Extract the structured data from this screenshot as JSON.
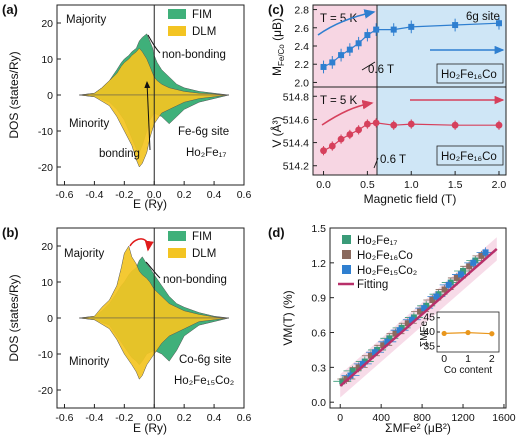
{
  "colors": {
    "fim": "#3fb07a",
    "dlm": "#f3c422",
    "pink_bg": "#f7d6e3",
    "blue_bg": "#cfe6f6",
    "blue_pts": "#2f7fd0",
    "red_pts": "#d6405c",
    "fit_line": "#b8306a",
    "s17": "#3a9b78",
    "s16": "#8a6a5e",
    "s15": "#2f7fd0",
    "inset": "#e9971d"
  },
  "panels": {
    "a": {
      "label": "(a)",
      "ylabel": "DOS (states/Ry)",
      "xlabel": "E (Ry)",
      "majority": "Majority",
      "minority": "Minority",
      "non_bonding": "non-bonding",
      "bonding": "bonding",
      "site": "Fe-6g site",
      "compound": "Ho₂Fe₁₇",
      "legend": [
        "FIM",
        "DLM"
      ],
      "yticks": [
        "20",
        "10",
        "0",
        "-10",
        "-20"
      ],
      "xticks": [
        "-0.6",
        "-0.4",
        "-0.2",
        "0.0",
        "0.2",
        "0.4",
        "0.6"
      ]
    },
    "b": {
      "label": "(b)",
      "ylabel": "DOS (states/Ry)",
      "xlabel": "E (Ry)",
      "majority": "Majority",
      "minority": "Minority",
      "non_bonding": "non-bonding",
      "site": "Co-6g site",
      "compound": "Ho₂Fe₁₅Co₂",
      "legend": [
        "FIM",
        "DLM"
      ],
      "yticks": [
        "20",
        "10",
        "0",
        "-10",
        "-20"
      ],
      "xticks": [
        "-0.6",
        "-0.4",
        "-0.2",
        "0.0",
        "0.2",
        "0.4",
        "0.6"
      ]
    },
    "c": {
      "label": "(c)",
      "top_ylabel": "M",
      "top_ylabel_sub": "Fe/Co",
      "top_ylabel_unit": "(μB)",
      "bot_ylabel": "V (Å³)",
      "xlabel": "Magnetic field (T)",
      "temp_top": "T = 5 K",
      "temp_bot": "T = 5 K",
      "site": "6g site",
      "field_top": "0.6 T",
      "field_bot": "0.6 T",
      "compound_top": "Ho₂Fe₁₆Co",
      "compound_bot": "Ho₂Fe₁₆Co",
      "top_yticks": [
        "2.8",
        "2.6",
        "2.4",
        "2.2",
        "2.0"
      ],
      "bot_yticks": [
        "514.8",
        "514.6",
        "514.4",
        "514.2"
      ],
      "xticks": [
        "0.0",
        "0.5",
        "1.0",
        "1.5",
        "2.0"
      ]
    },
    "d": {
      "label": "(d)",
      "ylabel": "VM(T) (%)",
      "xlabel": "ΣMFe² (μB²)",
      "legend": [
        "Ho₂Fe₁₇",
        "Ho₂Fe₁₆Co",
        "Ho₂Fe₁₅Co₂",
        "Fitting"
      ],
      "yticks": [
        "1.5",
        "1.2",
        "0.9",
        "0.6",
        "0.3",
        "0.0"
      ],
      "xticks": [
        "0",
        "400",
        "800",
        "1200",
        "1600"
      ],
      "inset_ylabel": "ΣMFe",
      "inset_xlabel": "Co content",
      "inset_yticks": [
        "45",
        "40",
        "35"
      ],
      "inset_xticks": [
        "0",
        "1",
        "2"
      ]
    }
  },
  "chart_data": [
    {
      "type": "area",
      "panel": "a",
      "xlabel": "E (Ry)",
      "ylabel": "DOS (states/Ry)",
      "xlim": [
        -0.65,
        0.6
      ],
      "ylim": [
        -25,
        25
      ],
      "series": [
        {
          "name": "FIM",
          "majority": {
            "x": [
              -0.5,
              -0.4,
              -0.35,
              -0.3,
              -0.25,
              -0.22,
              -0.2,
              -0.17,
              -0.15,
              -0.12,
              -0.1,
              -0.08,
              -0.05,
              -0.03,
              -0.01,
              0.0,
              0.02,
              0.05,
              0.1,
              0.15,
              0.2,
              0.3,
              0.4,
              0.5
            ],
            "y": [
              0,
              0.5,
              2,
              4,
              7,
              9,
              10,
              11,
              12,
              13,
              15,
              16,
              17,
              15,
              13,
              11,
              9,
              7,
              5,
              3,
              2,
              1,
              0.5,
              0
            ]
          },
          "minority": {
            "x": [
              -0.5,
              -0.4,
              -0.3,
              -0.25,
              -0.2,
              -0.15,
              -0.12,
              -0.1,
              -0.08,
              -0.05,
              -0.03,
              0.0,
              0.05,
              0.1,
              0.15,
              0.2,
              0.3,
              0.4,
              0.5
            ],
            "y": [
              0,
              -0.5,
              -2,
              -4,
              -7,
              -12,
              -15,
              -16,
              -14,
              -10,
              -7,
              -5,
              -6,
              -8,
              -6,
              -4,
              -2,
              -1,
              0
            ]
          }
        },
        {
          "name": "DLM",
          "majority": {
            "x": [
              -0.5,
              -0.4,
              -0.35,
              -0.3,
              -0.25,
              -0.22,
              -0.2,
              -0.17,
              -0.15,
              -0.12,
              -0.1,
              -0.08,
              -0.05,
              -0.03,
              -0.01,
              0.0,
              0.02,
              0.05,
              0.1,
              0.15,
              0.2,
              0.3,
              0.4,
              0.5
            ],
            "y": [
              0,
              0.5,
              2,
              4,
              6,
              8,
              9,
              10,
              11,
              12,
              13,
              12,
              10,
              8,
              6,
              5,
              4,
              3,
              2,
              1.5,
              1,
              0.5,
              0.3,
              0
            ]
          },
          "minority": {
            "x": [
              -0.5,
              -0.4,
              -0.3,
              -0.25,
              -0.2,
              -0.15,
              -0.12,
              -0.1,
              -0.08,
              -0.05,
              -0.03,
              0.0,
              0.05,
              0.1,
              0.15,
              0.2,
              0.3,
              0.4,
              0.5
            ],
            "y": [
              0,
              -0.5,
              -3,
              -6,
              -10,
              -14,
              -18,
              -20,
              -19,
              -16,
              -12,
              -8,
              -5,
              -4,
              -3,
              -2,
              -1,
              -0.5,
              0
            ]
          }
        }
      ]
    },
    {
      "type": "area",
      "panel": "b",
      "xlabel": "E (Ry)",
      "ylabel": "DOS (states/Ry)",
      "xlim": [
        -0.65,
        0.6
      ],
      "ylim": [
        -25,
        25
      ],
      "series": [
        {
          "name": "FIM",
          "majority": {
            "x": [
              -0.5,
              -0.4,
              -0.35,
              -0.3,
              -0.25,
              -0.22,
              -0.2,
              -0.17,
              -0.15,
              -0.12,
              -0.1,
              -0.08,
              -0.05,
              -0.03,
              0.0,
              0.05,
              0.1,
              0.15,
              0.2,
              0.3,
              0.4,
              0.5
            ],
            "y": [
              0,
              0.5,
              2,
              4,
              7,
              9,
              10,
              12,
              13,
              14,
              16,
              17,
              15,
              14,
              12,
              9,
              6,
              4,
              3,
              1.5,
              0.5,
              0
            ]
          },
          "minority": {
            "x": [
              -0.5,
              -0.4,
              -0.3,
              -0.25,
              -0.2,
              -0.15,
              -0.12,
              -0.1,
              -0.08,
              -0.05,
              0.0,
              0.05,
              0.1,
              0.15,
              0.2,
              0.3,
              0.4,
              0.5
            ],
            "y": [
              0,
              -0.5,
              -2,
              -5,
              -8,
              -11,
              -12,
              -13,
              -12,
              -10,
              -9,
              -10,
              -12,
              -9,
              -5,
              -2,
              -1,
              0
            ]
          }
        },
        {
          "name": "DLM",
          "majority": {
            "x": [
              -0.5,
              -0.4,
              -0.35,
              -0.3,
              -0.25,
              -0.22,
              -0.2,
              -0.17,
              -0.15,
              -0.12,
              -0.1,
              -0.08,
              -0.05,
              -0.03,
              0.0,
              0.05,
              0.1,
              0.15,
              0.2,
              0.3,
              0.4,
              0.5
            ],
            "y": [
              0,
              0.5,
              3,
              5,
              9,
              14,
              18,
              20,
              17,
              15,
              13,
              12,
              11,
              10,
              8,
              6,
              4,
              3,
              2,
              1,
              0.3,
              0
            ]
          },
          "minority": {
            "x": [
              -0.5,
              -0.4,
              -0.3,
              -0.25,
              -0.2,
              -0.15,
              -0.12,
              -0.1,
              -0.08,
              -0.05,
              0.0,
              0.05,
              0.1,
              0.15,
              0.2,
              0.3,
              0.4,
              0.5
            ],
            "y": [
              0,
              -0.5,
              -3,
              -6,
              -10,
              -13,
              -15,
              -17,
              -16,
              -13,
              -10,
              -7,
              -5,
              -4,
              -3,
              -1,
              -0.5,
              0
            ]
          }
        }
      ]
    },
    {
      "type": "scatter",
      "panel": "c-top",
      "xlabel": "Magnetic field (T)",
      "ylabel": "MFe/Co (μB)",
      "xlim": [
        -0.12,
        2.08
      ],
      "ylim": [
        1.95,
        2.85
      ],
      "x": [
        0.0,
        0.1,
        0.2,
        0.3,
        0.4,
        0.5,
        0.6,
        0.8,
        1.0,
        1.5,
        2.0
      ],
      "y": [
        2.17,
        2.22,
        2.3,
        2.36,
        2.43,
        2.52,
        2.58,
        2.58,
        2.61,
        2.63,
        2.65
      ],
      "yerr": [
        0.07,
        0.07,
        0.07,
        0.07,
        0.07,
        0.07,
        0.07,
        0.07,
        0.07,
        0.07,
        0.07
      ]
    },
    {
      "type": "scatter",
      "panel": "c-bottom",
      "xlabel": "Magnetic field (T)",
      "ylabel": "V (Å³)",
      "xlim": [
        -0.12,
        2.08
      ],
      "ylim": [
        514.12,
        514.88
      ],
      "x": [
        0.0,
        0.1,
        0.2,
        0.3,
        0.4,
        0.5,
        0.6,
        0.8,
        1.0,
        1.5,
        2.0
      ],
      "y": [
        514.33,
        514.37,
        514.43,
        514.47,
        514.51,
        514.56,
        514.57,
        514.55,
        514.56,
        514.55,
        514.55
      ],
      "yerr": [
        0.04,
        0.04,
        0.04,
        0.04,
        0.04,
        0.04,
        0.04,
        0.04,
        0.04,
        0.04,
        0.04
      ]
    },
    {
      "type": "scatter",
      "panel": "d",
      "xlabel": "ΣMFe² (μB²)",
      "ylabel": "VM(T) (%)",
      "xlim": [
        -100,
        1620
      ],
      "ylim": [
        -0.05,
        1.5
      ],
      "series": [
        {
          "name": "Ho₂Fe₁₇",
          "x": [
            20,
            120,
            240,
            360,
            480,
            600,
            720,
            840,
            960,
            1080,
            1200,
            1320
          ],
          "y": [
            0.18,
            0.27,
            0.35,
            0.45,
            0.55,
            0.64,
            0.73,
            0.83,
            0.93,
            1.03,
            1.13,
            1.22
          ]
        },
        {
          "name": "Ho₂Fe₁₆Co",
          "x": [
            60,
            180,
            300,
            420,
            540,
            660,
            780,
            900,
            1020,
            1140,
            1260,
            1380
          ],
          "y": [
            0.2,
            0.3,
            0.4,
            0.49,
            0.59,
            0.68,
            0.78,
            0.88,
            0.97,
            1.07,
            1.17,
            1.26
          ]
        },
        {
          "name": "Ho₂Fe₁₅Co₂",
          "x": [
            100,
            220,
            340,
            460,
            580,
            700,
            820,
            940,
            1060,
            1180,
            1300,
            1420
          ],
          "y": [
            0.23,
            0.33,
            0.43,
            0.52,
            0.62,
            0.71,
            0.81,
            0.91,
            1.01,
            1.1,
            1.2,
            1.29
          ]
        },
        {
          "name": "Fitting",
          "x": [
            0,
            1530
          ],
          "y": [
            0.14,
            1.32
          ]
        }
      ],
      "inset": {
        "xlabel": "Co content",
        "ylabel": "ΣMFe",
        "x": [
          0,
          1,
          2
        ],
        "y": [
          39.5,
          39.8,
          39.4
        ],
        "ylim": [
          33,
          47
        ],
        "xlim": [
          -0.3,
          2.3
        ]
      }
    }
  ]
}
